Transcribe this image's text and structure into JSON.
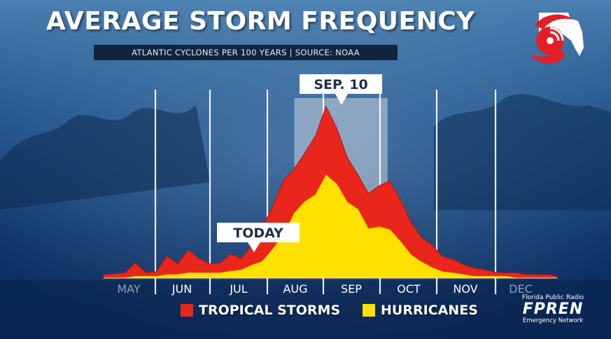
{
  "header": {
    "title": "AVERAGE STORM FREQUENCY",
    "subtitle": "ATLANTIC CYCLONES PER 100 YEARS | SOURCE: NOAA"
  },
  "colors": {
    "tropical_storms": "#e8261c",
    "hurricanes": "#ffe100",
    "background": "#0b2a55",
    "peak_band": "#c9d3dd"
  },
  "logo": {
    "icon": "hurricane-florida-logo-icon",
    "org_top": "Florida Public Radio",
    "org_name": "FPREN",
    "org_bottom": "Emergency Network"
  },
  "chart_data": {
    "type": "area",
    "title": "AVERAGE STORM FREQUENCY",
    "subtitle": "ATLANTIC CYCLONES PER 100 YEARS | SOURCE: NOAA",
    "x_labels": [
      "MAY",
      "JUN",
      "JUL",
      "AUG",
      "SEP",
      "OCT",
      "NOV",
      "DEC"
    ],
    "xlim": [
      0,
      214
    ],
    "ylim": [
      0,
      100
    ],
    "grid": "vertical month dividers",
    "series": [
      {
        "name": "TROPICAL STORMS",
        "color": "#e8261c",
        "x": [
          0,
          10,
          15,
          20,
          25,
          30,
          35,
          40,
          45,
          50,
          55,
          60,
          65,
          70,
          75,
          80,
          85,
          90,
          95,
          100,
          105,
          110,
          115,
          120,
          125,
          130,
          135,
          140,
          145,
          150,
          155,
          160,
          165,
          170,
          175,
          180,
          185,
          190,
          195,
          200,
          205,
          210,
          214
        ],
        "values": [
          2,
          3,
          8,
          3,
          4,
          12,
          9,
          16,
          11,
          9,
          8,
          14,
          12,
          18,
          30,
          42,
          56,
          64,
          72,
          82,
          100,
          86,
          70,
          60,
          48,
          54,
          56,
          45,
          33,
          23,
          19,
          13,
          10,
          8,
          6,
          4,
          4,
          3,
          3,
          2,
          2,
          2,
          1
        ]
      },
      {
        "name": "HURRICANES",
        "color": "#ffe100",
        "x": [
          0,
          10,
          15,
          20,
          25,
          30,
          35,
          40,
          45,
          50,
          55,
          60,
          65,
          70,
          75,
          80,
          85,
          90,
          95,
          100,
          105,
          110,
          115,
          120,
          125,
          130,
          135,
          140,
          145,
          150,
          155,
          160,
          165,
          170,
          175,
          180,
          185,
          190,
          195,
          200,
          205,
          210,
          214
        ],
        "values": [
          0,
          0,
          1,
          1,
          1,
          2,
          2,
          3,
          3,
          3,
          3,
          4,
          5,
          7,
          10,
          17,
          25,
          38,
          44,
          48,
          60,
          54,
          44,
          40,
          28,
          30,
          28,
          21,
          14,
          9,
          6,
          4,
          3,
          2,
          1,
          1,
          1,
          1,
          0,
          0,
          0,
          0,
          0
        ]
      }
    ],
    "annotations": [
      {
        "label": "TODAY",
        "x": 68
      },
      {
        "label": "SEP. 10",
        "x": 102,
        "band": [
          90,
          134
        ]
      }
    ],
    "legend": "bottom-center"
  }
}
